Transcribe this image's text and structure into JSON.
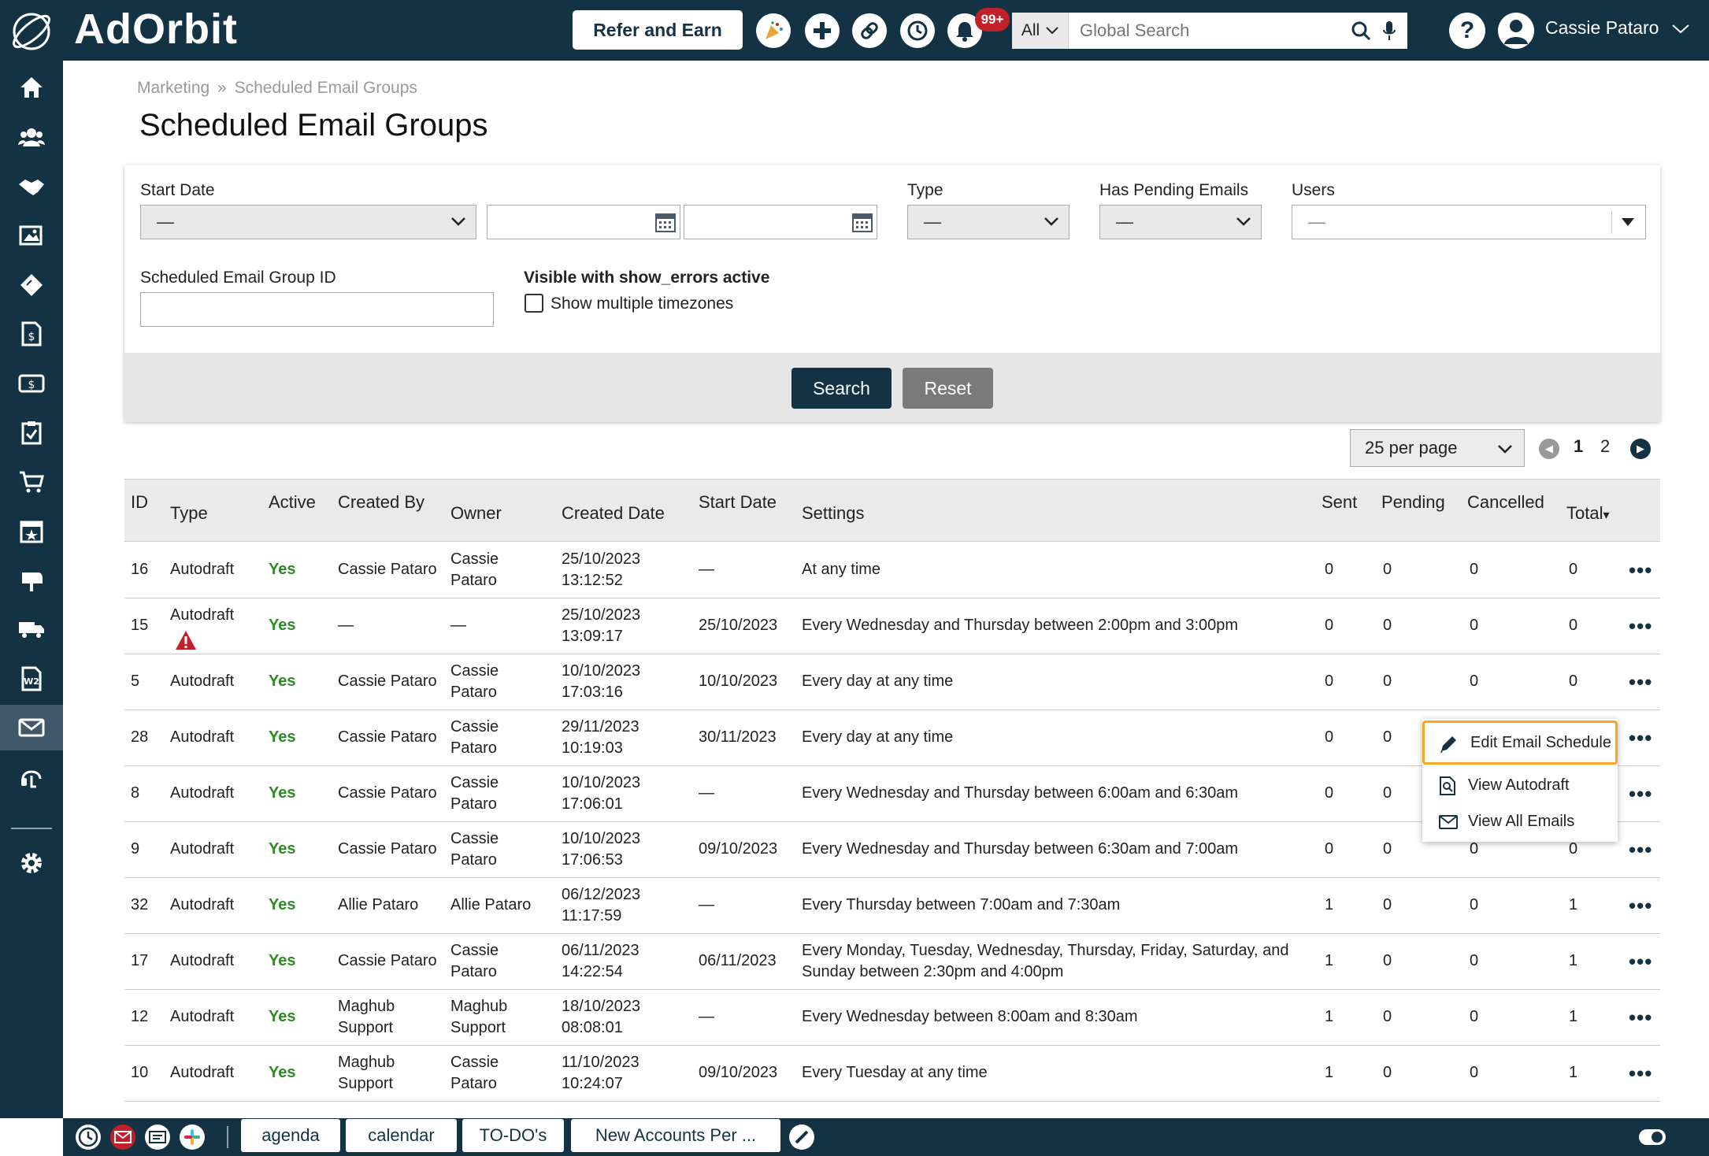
{
  "app": {
    "logo_text": "AdOrbit"
  },
  "topbar": {
    "refer_label": "Refer and Earn",
    "notification_count": "99+",
    "search_scope": "All",
    "search_placeholder": "Global Search",
    "user_name": "Cassie Pataro"
  },
  "breadcrumb": {
    "parent": "Marketing",
    "separator": "»",
    "current": "Scheduled Email Groups"
  },
  "page_title": "Scheduled Email Groups",
  "filters": {
    "start_date_label": "Start Date",
    "start_date_value": "—",
    "type_label": "Type",
    "type_value": "—",
    "pending_label": "Has Pending Emails",
    "pending_value": "—",
    "users_label": "Users",
    "users_value": "—",
    "group_id_label": "Scheduled Email Group ID",
    "debug_label": "Visible with show_errors active",
    "timezones_label": "Show multiple timezones",
    "search_button": "Search",
    "reset_button": "Reset"
  },
  "pagination": {
    "per_page": "25 per page",
    "pages": [
      "1",
      "2"
    ]
  },
  "table": {
    "headers": {
      "id": "ID",
      "type": "Type",
      "active": "Active",
      "created_by": "Created By",
      "owner": "Owner",
      "created_date": "Created Date",
      "start_date": "Start Date",
      "settings": "Settings",
      "sent": "Sent",
      "pending": "Pending",
      "cancelled": "Cancelled",
      "total": "Total"
    },
    "sort_indicator": "▾",
    "rows": [
      {
        "id": "16",
        "type": "Autodraft",
        "active": "Yes",
        "created_by": "Cassie Pataro",
        "owner": "Cassie\nPataro",
        "created_date": "25/10/2023\n13:12:52",
        "start_date": "—",
        "settings": "At any time",
        "sent": "0",
        "pending": "0",
        "cancelled": "0",
        "total": "0"
      },
      {
        "id": "15",
        "type": "Autodraft",
        "active": "Yes",
        "created_by": "—",
        "owner": "—",
        "created_date": "25/10/2023\n13:09:17",
        "start_date": "25/10/2023",
        "settings": "Every Wednesday and Thursday between 2:00pm and 3:00pm",
        "sent": "0",
        "pending": "0",
        "cancelled": "0",
        "total": "0"
      },
      {
        "id": "5",
        "type": "Autodraft",
        "active": "Yes",
        "created_by": "Cassie Pataro",
        "owner": "Cassie\nPataro",
        "created_date": "10/10/2023\n17:03:16",
        "start_date": "10/10/2023",
        "settings": "Every day at any time",
        "sent": "0",
        "pending": "0",
        "cancelled": "0",
        "total": "0"
      },
      {
        "id": "28",
        "type": "Autodraft",
        "active": "Yes",
        "created_by": "Cassie Pataro",
        "owner": "Cassie\nPataro",
        "created_date": "29/11/2023\n10:19:03",
        "start_date": "30/11/2023",
        "settings": "Every day at any time",
        "sent": "0",
        "pending": "0",
        "cancelled": "",
        "total": ""
      },
      {
        "id": "8",
        "type": "Autodraft",
        "active": "Yes",
        "created_by": "Cassie Pataro",
        "owner": "Cassie\nPataro",
        "created_date": "10/10/2023\n17:06:01",
        "start_date": "—",
        "settings": "Every Wednesday and Thursday between 6:00am and 6:30am",
        "sent": "0",
        "pending": "0",
        "cancelled": "",
        "total": ""
      },
      {
        "id": "9",
        "type": "Autodraft",
        "active": "Yes",
        "created_by": "Cassie Pataro",
        "owner": "Cassie\nPataro",
        "created_date": "10/10/2023\n17:06:53",
        "start_date": "09/10/2023",
        "settings": "Every Wednesday and Thursday between 6:30am and 7:00am",
        "sent": "0",
        "pending": "0",
        "cancelled": "0",
        "total": "0"
      },
      {
        "id": "32",
        "type": "Autodraft",
        "active": "Yes",
        "created_by": "Allie Pataro",
        "owner": "Allie Pataro",
        "created_date": "06/12/2023\n11:17:59",
        "start_date": "—",
        "settings": "Every Thursday between 7:00am and 7:30am",
        "sent": "1",
        "pending": "0",
        "cancelled": "0",
        "total": "1"
      },
      {
        "id": "17",
        "type": "Autodraft",
        "active": "Yes",
        "created_by": "Cassie Pataro",
        "owner": "Cassie\nPataro",
        "created_date": "06/11/2023\n14:22:54",
        "start_date": "06/11/2023",
        "settings": "Every Monday, Tuesday, Wednesday, Thursday, Friday, Saturday, and\nSunday between 2:30pm and 4:00pm",
        "sent": "1",
        "pending": "0",
        "cancelled": "0",
        "total": "1"
      },
      {
        "id": "12",
        "type": "Autodraft",
        "active": "Yes",
        "created_by": "Maghub\nSupport",
        "owner": "Maghub\nSupport",
        "created_date": "18/10/2023\n08:08:01",
        "start_date": "—",
        "settings": "Every Wednesday between 8:00am and 8:30am",
        "sent": "1",
        "pending": "0",
        "cancelled": "0",
        "total": "1"
      },
      {
        "id": "10",
        "type": "Autodraft",
        "active": "Yes",
        "created_by": "Maghub\nSupport",
        "owner": "Cassie\nPataro",
        "created_date": "11/10/2023\n10:24:07",
        "start_date": "09/10/2023",
        "settings": "Every Tuesday at any time",
        "sent": "1",
        "pending": "0",
        "cancelled": "0",
        "total": "1"
      }
    ]
  },
  "context_menu": {
    "items": [
      {
        "label": "Edit Email Schedule",
        "icon": "pencil-icon"
      },
      {
        "label": "View Autodraft",
        "icon": "document-search-icon"
      },
      {
        "label": "View All Emails",
        "icon": "envelope-icon"
      }
    ]
  },
  "bottombar": {
    "tabs": [
      "agenda",
      "calendar",
      "TO-DO's",
      "New Accounts Per ..."
    ]
  },
  "colors": {
    "navy": "#133344",
    "yes_green": "#2e8b23",
    "focus_orange": "#f5a623",
    "badge_red": "#c0202a"
  }
}
